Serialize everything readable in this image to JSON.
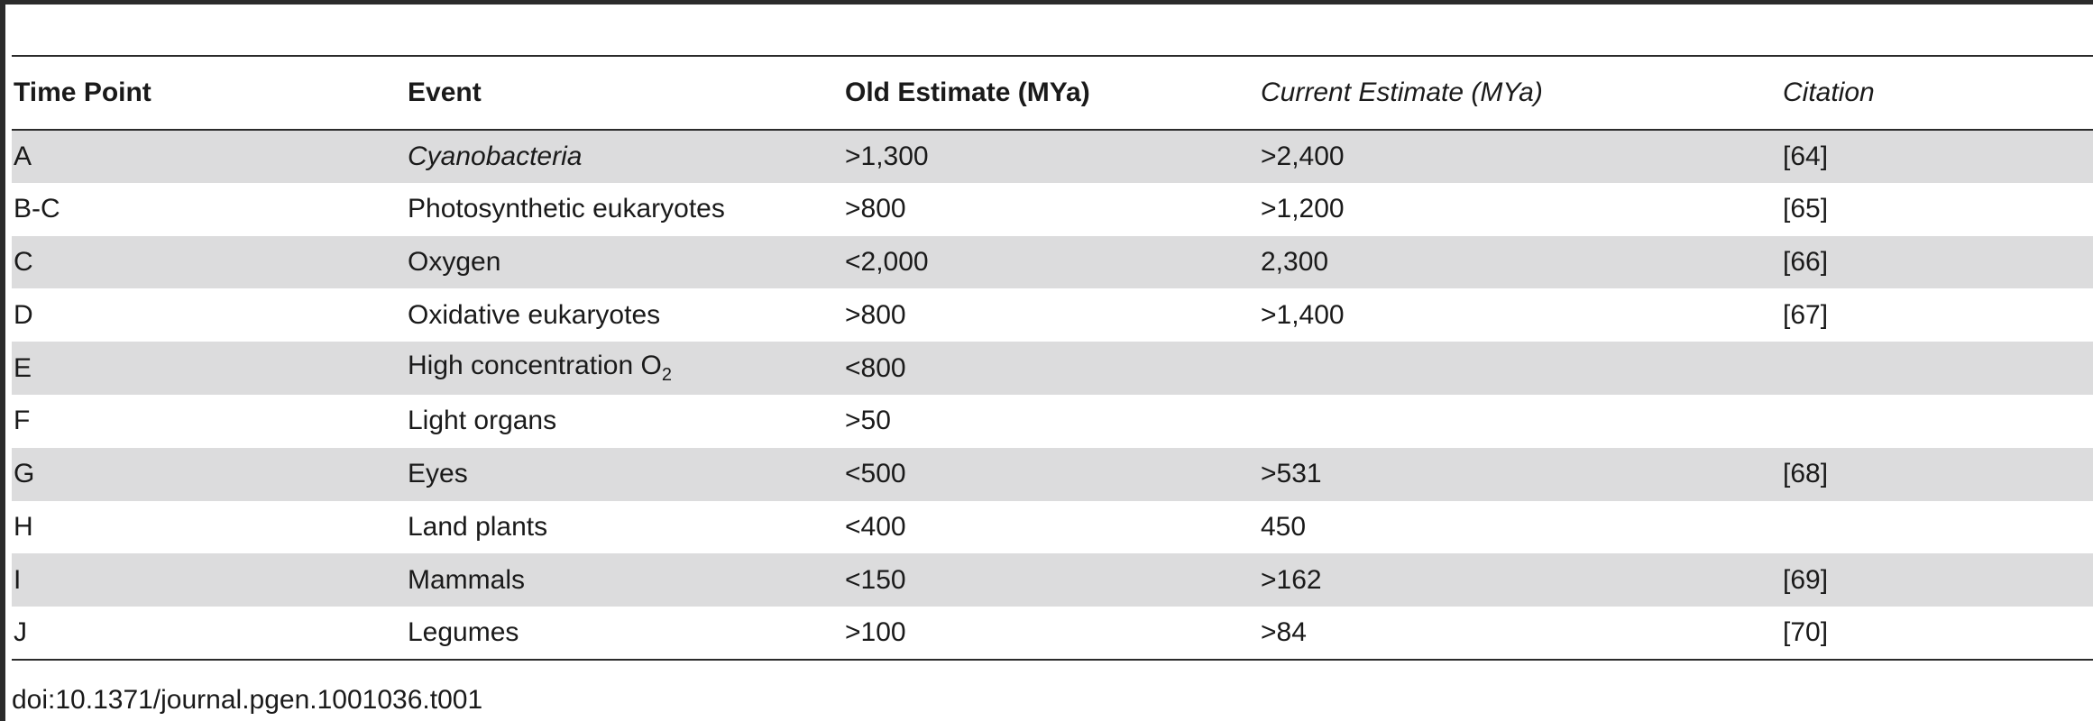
{
  "table": {
    "headers": [
      "Time Point",
      "Event",
      "Old Estimate (MYa)",
      "Current Estimate (MYa)",
      "Citation"
    ],
    "rows": [
      {
        "time_point": "A",
        "event": "Cyanobacteria",
        "event_italic": true,
        "old": ">1,300",
        "current": ">2,400",
        "citation": "[64]"
      },
      {
        "time_point": "B-C",
        "event": "Photosynthetic eukaryotes",
        "old": ">800",
        "current": ">1,200",
        "citation": "[65]"
      },
      {
        "time_point": "C",
        "event": "Oxygen",
        "old": "<2,000",
        "current": "2,300",
        "citation": "[66]"
      },
      {
        "time_point": "D",
        "event": "Oxidative eukaryotes",
        "old": ">800",
        "current": ">1,400",
        "citation": "[67]"
      },
      {
        "time_point": "E",
        "event": "High concentration O",
        "event_subscript": "2",
        "old": "<800",
        "current": "",
        "citation": ""
      },
      {
        "time_point": "F",
        "event": "Light organs",
        "old": ">50",
        "current": "",
        "citation": ""
      },
      {
        "time_point": "G",
        "event": "Eyes",
        "old": "<500",
        "current": ">531",
        "citation": "[68]"
      },
      {
        "time_point": "H",
        "event": "Land plants",
        "old": "<400",
        "current": "450",
        "citation": ""
      },
      {
        "time_point": "I",
        "event": "Mammals",
        "old": "<150",
        "current": ">162",
        "citation": "[69]"
      },
      {
        "time_point": "J",
        "event": "Legumes",
        "old": ">100",
        "current": ">84",
        "citation": "[70]"
      }
    ]
  },
  "footer": {
    "doi": "doi:10.1371/journal.pgen.1001036.t001"
  }
}
